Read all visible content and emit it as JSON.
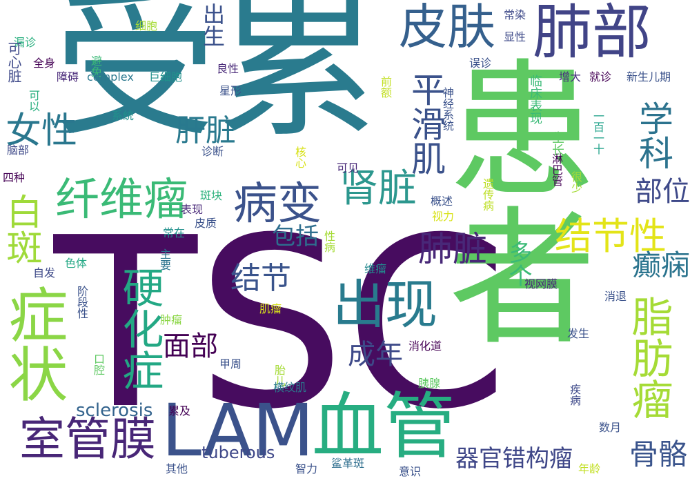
{
  "words": [
    {
      "text": "受累",
      "color": "#2a7b8e"
    },
    {
      "text": "TSC",
      "color": "#470c5f"
    },
    {
      "text": "患者",
      "color": "#5ec962"
    },
    {
      "text": "症状",
      "color": "#8bd646"
    },
    {
      "text": "LAM",
      "color": "#3b528b"
    },
    {
      "text": "血管",
      "color": "#27ad81"
    },
    {
      "text": "出现",
      "color": "#297b8e"
    },
    {
      "text": "肺部",
      "color": "#414487"
    },
    {
      "text": "皮肤",
      "color": "#35608d"
    },
    {
      "text": "纤维瘤",
      "color": "#3aba76"
    },
    {
      "text": "病变",
      "color": "#3b528b"
    },
    {
      "text": "肾脏",
      "color": "#2c978e"
    },
    {
      "text": "硬化症",
      "color": "#23a884"
    },
    {
      "text": "白斑",
      "color": "#9fda3a"
    },
    {
      "text": "女性",
      "color": "#2a778e"
    },
    {
      "text": "室管膜",
      "color": "#482677"
    },
    {
      "text": "脂肪瘤",
      "color": "#a5db36"
    },
    {
      "text": "结节性",
      "color": "#e3e418"
    },
    {
      "text": "平滑肌",
      "color": "#3b528b"
    },
    {
      "text": "学科",
      "color": "#2c738e"
    },
    {
      "text": "肝脏",
      "color": "#29798e"
    },
    {
      "text": "肺脏",
      "color": "#482878"
    },
    {
      "text": "结节",
      "color": "#3a548c"
    },
    {
      "text": "面部",
      "color": "#440154"
    },
    {
      "text": "成年",
      "color": "#3e4a89"
    },
    {
      "text": "癫痫",
      "color": "#2b748e"
    },
    {
      "text": "器官错构瘤",
      "color": "#3f4788"
    },
    {
      "text": "骨骼",
      "color": "#3a548c"
    },
    {
      "text": "部位",
      "color": "#3e4989"
    },
    {
      "text": "包括",
      "color": "#2e6e8e"
    },
    {
      "text": "多个",
      "color": "#3aba76"
    },
    {
      "text": "tuberous",
      "color": "#3f4889"
    },
    {
      "text": "sclerosis",
      "color": "#33638d"
    },
    {
      "text": "出生",
      "color": "#3b518b"
    },
    {
      "text": "全身",
      "color": "#440154"
    },
    {
      "text": "漏诊",
      "color": "#29af7f"
    },
    {
      "text": "避免",
      "color": "#3aba76"
    },
    {
      "text": "细胞",
      "color": "#a5db36"
    },
    {
      "text": "常染",
      "color": "#3e4a89"
    },
    {
      "text": "显性",
      "color": "#3e4a89"
    },
    {
      "text": "障碍",
      "color": "#482878"
    },
    {
      "text": "complex",
      "color": "#2a788e"
    },
    {
      "text": "巨细胞",
      "color": "#21918c"
    },
    {
      "text": "良性",
      "color": "#482878"
    },
    {
      "text": "误诊",
      "color": "#3b528b"
    },
    {
      "text": "增大",
      "color": "#472f7d"
    },
    {
      "text": "就诊",
      "color": "#440154"
    },
    {
      "text": "新生儿期",
      "color": "#3b528b"
    },
    {
      "text": "星形",
      "color": "#3b528b"
    },
    {
      "text": "可心脏",
      "color": "#3e4989"
    },
    {
      "text": "可以",
      "color": "#29af7f"
    },
    {
      "text": "系统",
      "color": "#21918c"
    },
    {
      "text": "前额",
      "color": "#c2df23"
    },
    {
      "text": "神经系统",
      "color": "#3b528b"
    },
    {
      "text": "临床表现",
      "color": "#3aba76"
    },
    {
      "text": "生长",
      "color": "#5ec962"
    },
    {
      "text": "一百一十",
      "color": "#1fa188"
    },
    {
      "text": "脑部",
      "color": "#3e4989"
    },
    {
      "text": "诊断",
      "color": "#3b528b"
    },
    {
      "text": "核心",
      "color": "#d8e219"
    },
    {
      "text": "可见",
      "color": "#482878"
    },
    {
      "text": "四种",
      "color": "#440154"
    },
    {
      "text": "淋巴管",
      "color": "#440154"
    },
    {
      "text": "很少",
      "color": "#a5db36"
    },
    {
      "text": "遗传病",
      "color": "#bddf26"
    },
    {
      "text": "概述",
      "color": "#3b528b"
    },
    {
      "text": "视力",
      "color": "#d8e219"
    },
    {
      "text": "斑块",
      "color": "#2db27d"
    },
    {
      "text": "表现",
      "color": "#482878"
    },
    {
      "text": "皮质",
      "color": "#3b528b"
    },
    {
      "text": "常在",
      "color": "#21918c"
    },
    {
      "text": "性病",
      "color": "#a5db36"
    },
    {
      "text": "自发",
      "color": "#3e4a89"
    },
    {
      "text": "色体",
      "color": "#22a884"
    },
    {
      "text": "主要",
      "color": "#2c738e"
    },
    {
      "text": "维瘤",
      "color": "#23898e"
    },
    {
      "text": "视网膜",
      "color": "#482878"
    },
    {
      "text": "消退",
      "color": "#3b528b"
    },
    {
      "text": "阶段性",
      "color": "#3b528b"
    },
    {
      "text": "肌瘤",
      "color": "#d8e219"
    },
    {
      "text": "肿瘤",
      "color": "#8bd646"
    },
    {
      "text": "口腔",
      "color": "#5ec962"
    },
    {
      "text": "发生",
      "color": "#3b528b"
    },
    {
      "text": "甲周",
      "color": "#3b528b"
    },
    {
      "text": "消化道",
      "color": "#440154"
    },
    {
      "text": "胎儿",
      "color": "#a5db36"
    },
    {
      "text": "横纹肌",
      "color": "#2a7b8e"
    },
    {
      "text": "胰腺",
      "color": "#5ec962"
    },
    {
      "text": "疾病",
      "color": "#3e4989"
    },
    {
      "text": "累及",
      "color": "#440154"
    },
    {
      "text": "数月",
      "color": "#3b528b"
    },
    {
      "text": "其他",
      "color": "#3b528b"
    },
    {
      "text": "智力",
      "color": "#3b528b"
    },
    {
      "text": "鲨革斑",
      "color": "#2e6e8e"
    },
    {
      "text": "意识",
      "color": "#3b528b"
    },
    {
      "text": "年龄",
      "color": "#c2df23"
    }
  ]
}
